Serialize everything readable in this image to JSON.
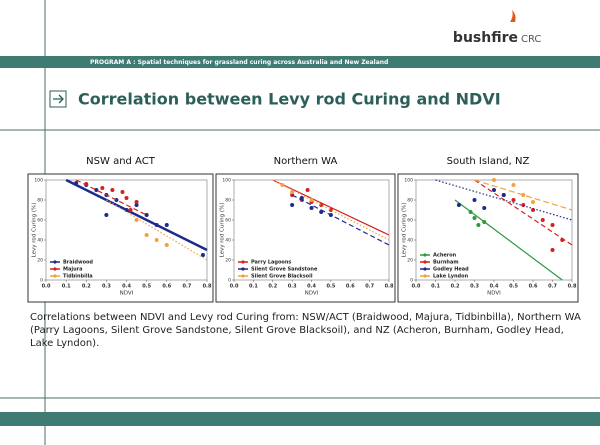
{
  "slide": {
    "logo": "bushfire",
    "logo_suffix": "CRC",
    "program": "PROGRAM A :  Spatial techniques for grassland curing across Australia and New Zealand",
    "title": "Correlation between Levy rod Curing and NDVI",
    "caption": "Correlations between NDVI and Levy rod Curing from: NSW/ACT (Braidwood, Majura, Tidbinbilla), Northern WA (Parry Lagoons, Silent Grove Sandstone, Silent Grove Blacksoil), and NZ (Acheron, Burnham, Godley Head, Lake Lyndon)."
  },
  "chart_data": [
    {
      "type": "scatter",
      "title": "NSW and ACT",
      "xlabel": "NDVI",
      "ylabel": "Levy rod Curing (%)",
      "xlim": [
        0,
        0.8
      ],
      "ylim": [
        0,
        100
      ],
      "xticks": [
        {
          "value": 0,
          "label": "0.0"
        },
        0.1,
        0.2,
        0.3,
        0.4,
        0.5,
        0.6,
        0.7,
        0.8
      ],
      "yticks": [
        0,
        20,
        40,
        60,
        80,
        100
      ],
      "legend": "lower left",
      "series": [
        {
          "name": "Braidwood",
          "color": "#1c2a8c",
          "x": [
            0.15,
            0.2,
            0.25,
            0.3,
            0.35,
            0.4,
            0.45,
            0.5,
            0.55,
            0.6,
            0.3,
            0.78
          ],
          "values": [
            97,
            95,
            90,
            85,
            80,
            70,
            75,
            65,
            55,
            55,
            65,
            25
          ],
          "trend": {
            "x": [
              0.1,
              0.8
            ],
            "values": [
              100,
              30
            ]
          }
        },
        {
          "name": "Majura",
          "color": "#d42020",
          "x": [
            0.2,
            0.28,
            0.33,
            0.38,
            0.4,
            0.45,
            0.42
          ],
          "values": [
            96,
            92,
            90,
            88,
            82,
            78,
            70
          ],
          "trend": {
            "x": [
              0.15,
              0.5
            ],
            "values": [
              100,
              65
            ]
          }
        },
        {
          "name": "Tidbinbilla",
          "color": "#f5a040",
          "x": [
            0.45,
            0.5,
            0.55,
            0.6
          ],
          "values": [
            60,
            45,
            40,
            35
          ],
          "trend": {
            "x": [
              0.3,
              0.8
            ],
            "values": [
              80,
              20
            ]
          }
        }
      ]
    },
    {
      "type": "scatter",
      "title": "Northern WA",
      "xlabel": "NDVI",
      "ylabel": "Levy rod Curing (%)",
      "xlim": [
        0,
        0.8
      ],
      "ylim": [
        0,
        100
      ],
      "xticks": [
        {
          "value": 0,
          "label": "0.0"
        },
        0.1,
        0.2,
        0.3,
        0.4,
        0.5,
        0.6,
        0.7,
        0.8
      ],
      "yticks": [
        0,
        20,
        40,
        60,
        80,
        100
      ],
      "legend": "lower left",
      "series": [
        {
          "name": "Parry Lagoons",
          "color": "#d42020",
          "x": [
            0.3,
            0.35,
            0.4,
            0.45,
            0.38,
            0.5
          ],
          "values": [
            85,
            80,
            78,
            75,
            90,
            70
          ],
          "trend": {
            "x": [
              0.2,
              0.8
            ],
            "values": [
              100,
              45
            ]
          }
        },
        {
          "name": "Silent Grove Sandstone",
          "color": "#1c2a8c",
          "x": [
            0.3,
            0.4,
            0.45,
            0.5,
            0.35
          ],
          "values": [
            75,
            72,
            68,
            65,
            82
          ],
          "trend": {
            "x": [
              0.3,
              0.8
            ],
            "values": [
              85,
              35
            ]
          }
        },
        {
          "name": "Silent Grove Blacksoil",
          "color": "#f5a040",
          "x": [
            0.25,
            0.3,
            0.4
          ],
          "values": [
            95,
            88,
            80
          ],
          "trend": {
            "x": [
              0.2,
              0.8
            ],
            "values": [
              100,
              40
            ]
          }
        }
      ]
    },
    {
      "type": "scatter",
      "title": "South Island, NZ",
      "xlabel": "NDVI",
      "ylabel": "Levy rod Curing (%)",
      "xlim": [
        0,
        0.8
      ],
      "ylim": [
        0,
        100
      ],
      "xticks": [
        {
          "value": 0,
          "label": "0.0"
        },
        0.1,
        0.2,
        0.3,
        0.4,
        0.5,
        0.6,
        0.7,
        0.8
      ],
      "yticks": [
        0,
        20,
        40,
        60,
        80,
        100
      ],
      "legend": "lower left",
      "series": [
        {
          "name": "Acheron",
          "color": "#2a9a3a",
          "x": [
            0.28,
            0.3,
            0.35,
            0.32
          ],
          "values": [
            68,
            62,
            58,
            55
          ],
          "trend": {
            "x": [
              0.2,
              0.75
            ],
            "values": [
              80,
              0
            ]
          }
        },
        {
          "name": "Burnham",
          "color": "#d42020",
          "x": [
            0.45,
            0.5,
            0.55,
            0.6,
            0.65,
            0.7,
            0.75,
            0.7
          ],
          "values": [
            85,
            80,
            75,
            70,
            60,
            55,
            40,
            30
          ],
          "trend": {
            "x": [
              0.3,
              0.8
            ],
            "values": [
              100,
              35
            ]
          }
        },
        {
          "name": "Godley Head",
          "color": "#1c2a8c",
          "x": [
            0.22,
            0.3,
            0.4,
            0.45,
            0.35
          ],
          "values": [
            75,
            80,
            90,
            85,
            72
          ],
          "trend": {
            "x": [
              0.1,
              0.8
            ],
            "values": [
              100,
              60
            ]
          }
        },
        {
          "name": "Lake Lyndon",
          "color": "#f5a040",
          "x": [
            0.4,
            0.5,
            0.55,
            0.6
          ],
          "values": [
            100,
            95,
            85,
            78
          ],
          "trend": {
            "x": [
              0.3,
              0.8
            ],
            "values": [
              100,
              70
            ]
          }
        }
      ]
    }
  ]
}
